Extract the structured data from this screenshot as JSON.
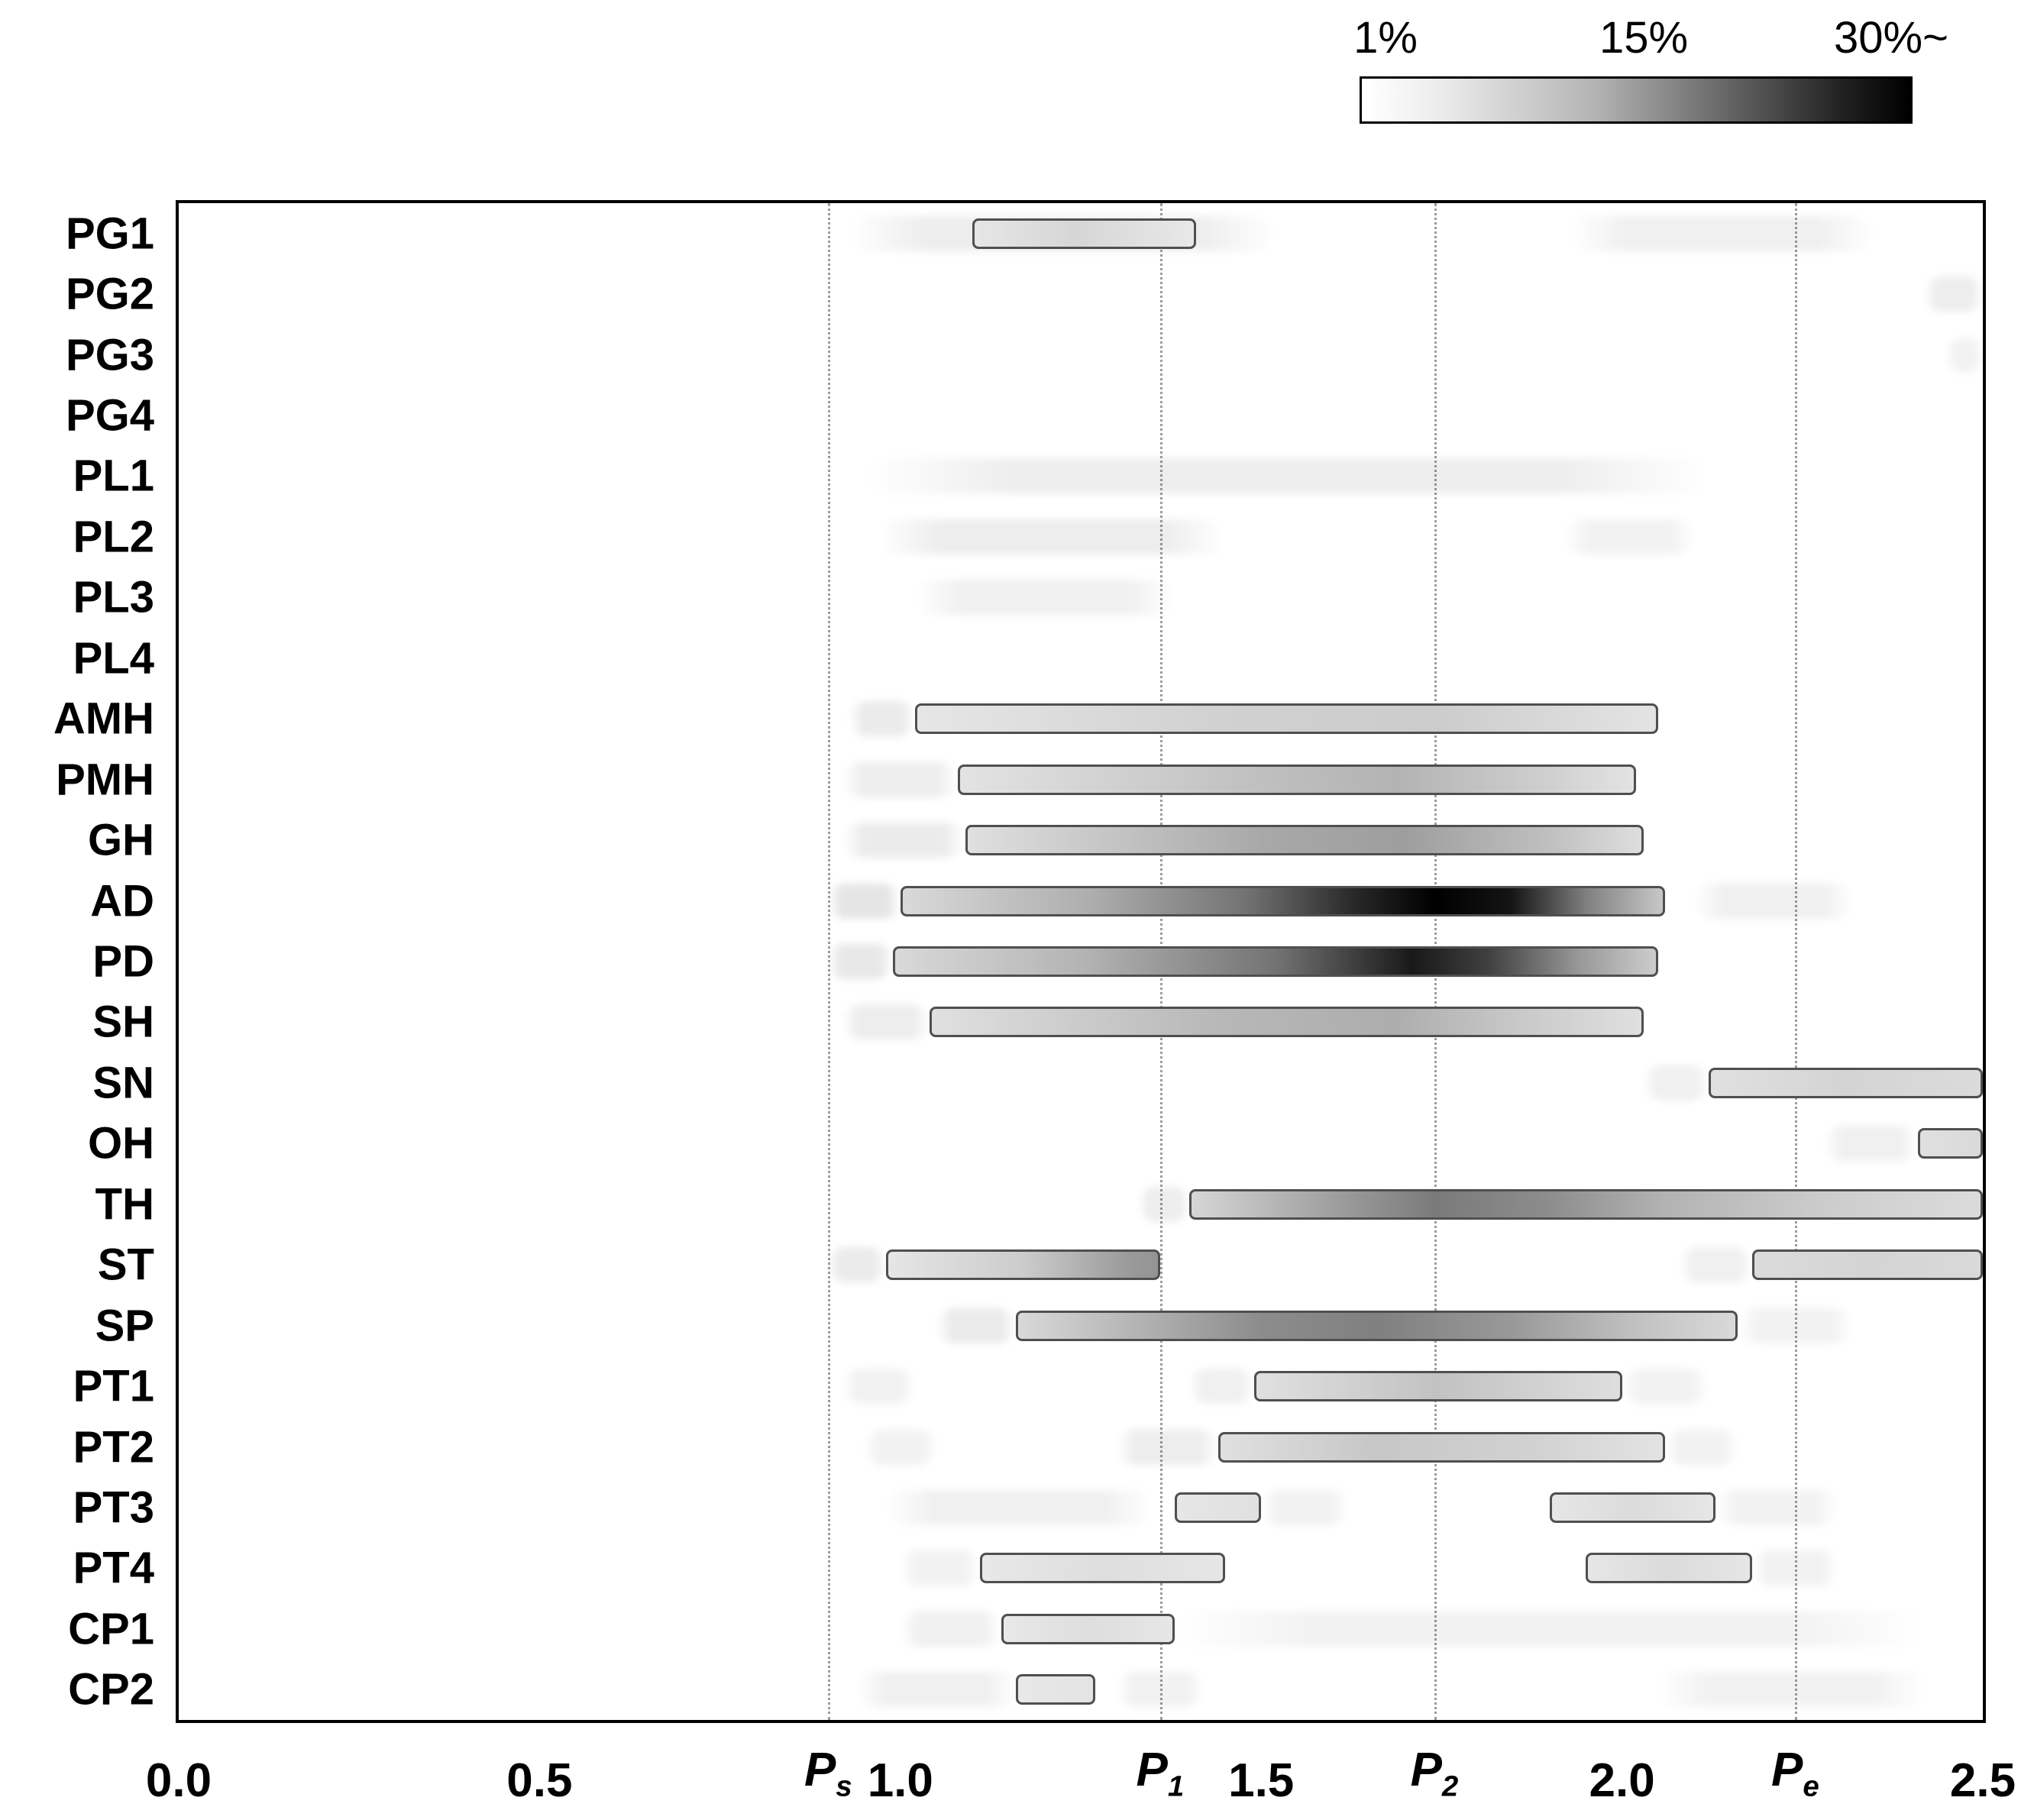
{
  "chart_data": {
    "type": "heatmap",
    "title": "",
    "xlabel": "",
    "ylabel": "",
    "xlim": [
      0.0,
      2.5
    ],
    "grid": "vertical-dotted-at-reference-lines",
    "legend_position": "top-right",
    "colorbar": {
      "min_label": "1%",
      "mid_label": "15%",
      "max_label": "30%~",
      "min_color": "#ffffff",
      "max_color": "#000000"
    },
    "x_ticks": [
      {
        "label": "0.0",
        "x": 0.0
      },
      {
        "label": "0.5",
        "x": 0.5
      },
      {
        "label": "1.0",
        "x": 1.0
      },
      {
        "label": "1.5",
        "x": 1.5
      },
      {
        "label": "2.0",
        "x": 2.0
      },
      {
        "label": "2.5",
        "x": 2.5
      }
    ],
    "ref_lines": [
      {
        "base": "P",
        "sub": "s",
        "x": 0.9
      },
      {
        "base": "P",
        "sub": "1",
        "x": 1.36
      },
      {
        "base": "P",
        "sub": "2",
        "x": 1.74
      },
      {
        "base": "P",
        "sub": "e",
        "x": 2.24
      }
    ],
    "rows": [
      {
        "label": "PG1",
        "bars": [
          {
            "from": 1.1,
            "to": 1.41,
            "stops": [
              [
                0,
                0.1
              ],
              [
                0.45,
                0.16
              ],
              [
                1,
                0.09
              ]
            ]
          }
        ],
        "smears": [
          {
            "from": 0.93,
            "to": 1.52,
            "i": 0.07
          },
          {
            "from": 1.93,
            "to": 2.35,
            "i": 0.06
          }
        ]
      },
      {
        "label": "PG2",
        "bars": [],
        "smears": [
          {
            "from": 2.42,
            "to": 2.5,
            "i": 0.07
          }
        ]
      },
      {
        "label": "PG3",
        "bars": [],
        "smears": [
          {
            "from": 2.45,
            "to": 2.5,
            "i": 0.05
          }
        ]
      },
      {
        "label": "PG4",
        "bars": [],
        "smears": []
      },
      {
        "label": "PL1",
        "bars": [],
        "smears": [
          {
            "from": 0.95,
            "to": 2.12,
            "i": 0.07
          }
        ]
      },
      {
        "label": "PL2",
        "bars": [],
        "smears": [
          {
            "from": 0.97,
            "to": 1.45,
            "i": 0.07
          },
          {
            "from": 1.92,
            "to": 2.1,
            "i": 0.05
          }
        ]
      },
      {
        "label": "PL3",
        "bars": [],
        "smears": [
          {
            "from": 1.02,
            "to": 1.38,
            "i": 0.06
          }
        ]
      },
      {
        "label": "PL4",
        "bars": [],
        "smears": []
      },
      {
        "label": "AMH",
        "bars": [
          {
            "from": 1.02,
            "to": 2.05,
            "stops": [
              [
                0,
                0.1
              ],
              [
                0.4,
                0.18
              ],
              [
                0.7,
                0.2
              ],
              [
                1,
                0.11
              ]
            ]
          }
        ],
        "smears": [
          {
            "from": 0.93,
            "to": 1.02,
            "i": 0.08
          }
        ]
      },
      {
        "label": "PMH",
        "bars": [
          {
            "from": 1.08,
            "to": 2.02,
            "stops": [
              [
                0,
                0.11
              ],
              [
                0.45,
                0.25
              ],
              [
                0.65,
                0.3
              ],
              [
                0.85,
                0.2
              ],
              [
                1,
                0.11
              ]
            ]
          }
        ],
        "smears": [
          {
            "from": 0.92,
            "to": 1.08,
            "i": 0.07
          }
        ]
      },
      {
        "label": "GH",
        "bars": [
          {
            "from": 1.09,
            "to": 2.03,
            "stops": [
              [
                0,
                0.12
              ],
              [
                0.44,
                0.34
              ],
              [
                0.65,
                0.38
              ],
              [
                0.86,
                0.25
              ],
              [
                1,
                0.13
              ]
            ]
          }
        ],
        "smears": [
          {
            "from": 0.92,
            "to": 1.09,
            "i": 0.08
          }
        ]
      },
      {
        "label": "AD",
        "bars": [
          {
            "from": 1.0,
            "to": 2.06,
            "stops": [
              [
                0,
                0.15
              ],
              [
                0.25,
                0.32
              ],
              [
                0.45,
                0.55
              ],
              [
                0.6,
                0.85
              ],
              [
                0.7,
                1.0
              ],
              [
                0.8,
                0.92
              ],
              [
                0.9,
                0.5
              ],
              [
                1,
                0.22
              ]
            ]
          }
        ],
        "smears": [
          {
            "from": 0.9,
            "to": 1.0,
            "i": 0.1
          },
          {
            "from": 2.1,
            "to": 2.32,
            "i": 0.06
          }
        ]
      },
      {
        "label": "PD",
        "bars": [
          {
            "from": 0.99,
            "to": 2.05,
            "stops": [
              [
                0,
                0.15
              ],
              [
                0.25,
                0.3
              ],
              [
                0.5,
                0.55
              ],
              [
                0.68,
                0.9
              ],
              [
                0.78,
                0.75
              ],
              [
                0.9,
                0.4
              ],
              [
                1,
                0.2
              ]
            ]
          }
        ],
        "smears": [
          {
            "from": 0.9,
            "to": 0.99,
            "i": 0.09
          }
        ]
      },
      {
        "label": "SH",
        "bars": [
          {
            "from": 1.04,
            "to": 2.03,
            "stops": [
              [
                0,
                0.12
              ],
              [
                0.4,
                0.28
              ],
              [
                0.65,
                0.32
              ],
              [
                0.85,
                0.2
              ],
              [
                1,
                0.12
              ]
            ]
          }
        ],
        "smears": [
          {
            "from": 0.92,
            "to": 1.04,
            "i": 0.07
          }
        ]
      },
      {
        "label": "SN",
        "bars": [
          {
            "from": 2.12,
            "to": 2.5,
            "stops": [
              [
                0,
                0.12
              ],
              [
                0.5,
                0.17
              ],
              [
                1,
                0.14
              ]
            ]
          }
        ],
        "smears": [
          {
            "from": 2.03,
            "to": 2.12,
            "i": 0.06
          }
        ]
      },
      {
        "label": "OH",
        "bars": [
          {
            "from": 2.41,
            "to": 2.5,
            "stops": [
              [
                0,
                0.12
              ],
              [
                1,
                0.15
              ]
            ]
          }
        ],
        "smears": [
          {
            "from": 2.28,
            "to": 2.41,
            "i": 0.06
          }
        ]
      },
      {
        "label": "TH",
        "bars": [
          {
            "from": 1.4,
            "to": 2.5,
            "stops": [
              [
                0,
                0.16
              ],
              [
                0.2,
                0.4
              ],
              [
                0.31,
                0.52
              ],
              [
                0.45,
                0.45
              ],
              [
                0.6,
                0.3
              ],
              [
                0.8,
                0.2
              ],
              [
                1,
                0.14
              ]
            ]
          }
        ],
        "smears": [
          {
            "from": 1.33,
            "to": 1.4,
            "i": 0.07
          }
        ]
      },
      {
        "label": "ST",
        "bars": [
          {
            "from": 0.98,
            "to": 1.36,
            "stops": [
              [
                0,
                0.1
              ],
              [
                0.5,
                0.2
              ],
              [
                0.9,
                0.4
              ],
              [
                1,
                0.42
              ]
            ]
          },
          {
            "from": 2.18,
            "to": 2.5,
            "stops": [
              [
                0,
                0.14
              ],
              [
                0.5,
                0.17
              ],
              [
                1,
                0.15
              ]
            ]
          }
        ],
        "smears": [
          {
            "from": 0.9,
            "to": 0.98,
            "i": 0.08
          },
          {
            "from": 2.08,
            "to": 2.18,
            "i": 0.06
          }
        ]
      },
      {
        "label": "SP",
        "bars": [
          {
            "from": 1.16,
            "to": 2.16,
            "stops": [
              [
                0,
                0.15
              ],
              [
                0.34,
                0.45
              ],
              [
                0.5,
                0.5
              ],
              [
                0.69,
                0.4
              ],
              [
                0.85,
                0.25
              ],
              [
                1,
                0.15
              ]
            ]
          }
        ],
        "smears": [
          {
            "from": 1.05,
            "to": 1.16,
            "i": 0.08
          },
          {
            "from": 2.16,
            "to": 2.32,
            "i": 0.05
          }
        ]
      },
      {
        "label": "PT1",
        "bars": [
          {
            "from": 1.49,
            "to": 2.0,
            "stops": [
              [
                0,
                0.12
              ],
              [
                0.5,
                0.24
              ],
              [
                1,
                0.13
              ]
            ]
          }
        ],
        "smears": [
          {
            "from": 0.92,
            "to": 1.02,
            "i": 0.05
          },
          {
            "from": 1.4,
            "to": 1.49,
            "i": 0.06
          },
          {
            "from": 2.0,
            "to": 2.12,
            "i": 0.05
          }
        ]
      },
      {
        "label": "PT2",
        "bars": [
          {
            "from": 1.44,
            "to": 2.06,
            "stops": [
              [
                0,
                0.12
              ],
              [
                0.35,
                0.22
              ],
              [
                0.7,
                0.18
              ],
              [
                1,
                0.11
              ]
            ]
          }
        ],
        "smears": [
          {
            "from": 0.95,
            "to": 1.05,
            "i": 0.05
          },
          {
            "from": 1.3,
            "to": 1.44,
            "i": 0.07
          },
          {
            "from": 2.06,
            "to": 2.16,
            "i": 0.05
          }
        ]
      },
      {
        "label": "PT3",
        "bars": [
          {
            "from": 1.38,
            "to": 1.5,
            "stops": [
              [
                0,
                0.1
              ],
              [
                1,
                0.12
              ]
            ]
          },
          {
            "from": 1.9,
            "to": 2.13,
            "stops": [
              [
                0,
                0.1
              ],
              [
                0.5,
                0.14
              ],
              [
                1,
                0.1
              ]
            ]
          }
        ],
        "smears": [
          {
            "from": 0.98,
            "to": 1.35,
            "i": 0.06
          },
          {
            "from": 1.5,
            "to": 1.62,
            "i": 0.05
          },
          {
            "from": 2.13,
            "to": 2.3,
            "i": 0.05
          }
        ]
      },
      {
        "label": "PT4",
        "bars": [
          {
            "from": 1.11,
            "to": 1.45,
            "stops": [
              [
                0,
                0.09
              ],
              [
                0.5,
                0.13
              ],
              [
                1,
                0.1
              ]
            ]
          },
          {
            "from": 1.95,
            "to": 2.18,
            "stops": [
              [
                0,
                0.1
              ],
              [
                0.5,
                0.14
              ],
              [
                1,
                0.1
              ]
            ]
          }
        ],
        "smears": [
          {
            "from": 1.0,
            "to": 1.11,
            "i": 0.05
          },
          {
            "from": 2.18,
            "to": 2.3,
            "i": 0.05
          }
        ]
      },
      {
        "label": "CP1",
        "bars": [
          {
            "from": 1.14,
            "to": 1.38,
            "stops": [
              [
                0,
                0.09
              ],
              [
                0.5,
                0.13
              ],
              [
                1,
                0.1
              ]
            ]
          }
        ],
        "smears": [
          {
            "from": 1.0,
            "to": 1.14,
            "i": 0.06
          },
          {
            "from": 1.38,
            "to": 2.42,
            "i": 0.05
          }
        ]
      },
      {
        "label": "CP2",
        "bars": [
          {
            "from": 1.16,
            "to": 1.27,
            "stops": [
              [
                0,
                0.09
              ],
              [
                1,
                0.11
              ]
            ]
          }
        ],
        "smears": [
          {
            "from": 0.94,
            "to": 1.16,
            "i": 0.06
          },
          {
            "from": 1.3,
            "to": 1.42,
            "i": 0.05
          },
          {
            "from": 2.05,
            "to": 2.42,
            "i": 0.05
          }
        ]
      }
    ]
  }
}
